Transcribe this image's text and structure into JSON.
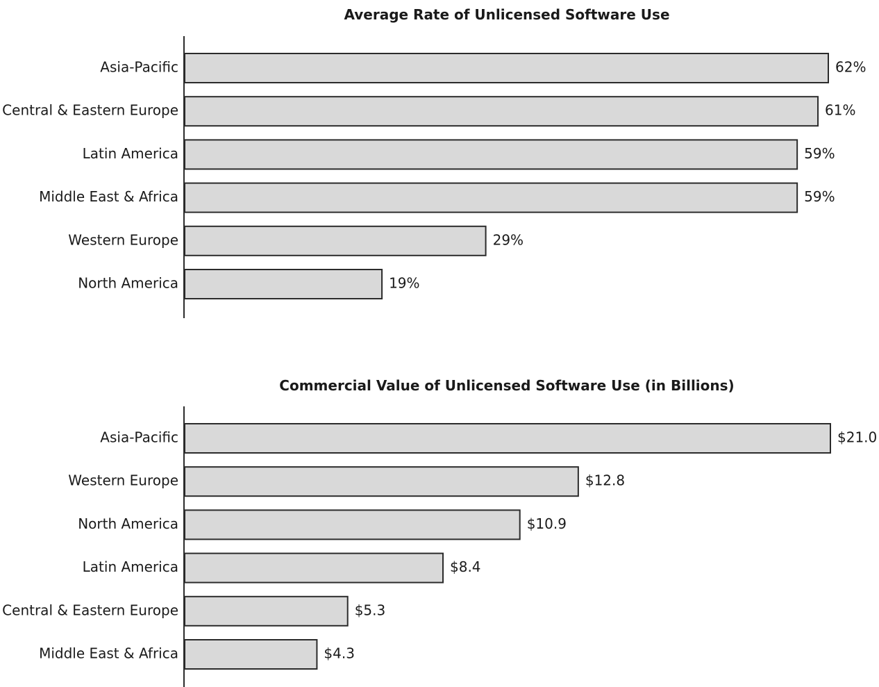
{
  "chart_data": [
    {
      "type": "bar",
      "orientation": "horizontal",
      "title": "Average Rate of Unlicensed Software Use",
      "categories": [
        "Asia-Pacific",
        "Central & Eastern Europe",
        "Latin America",
        "Middle East & Africa",
        "Western Europe",
        "North America"
      ],
      "values": [
        62,
        61,
        59,
        59,
        29,
        19
      ],
      "value_labels": [
        "62%",
        "61%",
        "59%",
        "59%",
        "29%",
        "19%"
      ],
      "xlim": [
        0,
        62
      ],
      "grid": false,
      "legend": "none",
      "bar_fill": "#d9d9d9",
      "bar_stroke": "#2b2b2b"
    },
    {
      "type": "bar",
      "orientation": "horizontal",
      "title": "Commercial Value of Unlicensed Software Use (in Billions)",
      "categories": [
        "Asia-Pacific",
        "Western Europe",
        "North America",
        "Latin America",
        "Central & Eastern Europe",
        "Middle East & Africa"
      ],
      "values": [
        21.0,
        12.8,
        10.9,
        8.4,
        5.3,
        4.3
      ],
      "value_labels": [
        "$21.0",
        "$12.8",
        "$10.9",
        "$8.4",
        "$5.3",
        "$4.3"
      ],
      "xlim": [
        0,
        21.0
      ],
      "grid": false,
      "legend": "none",
      "bar_fill": "#d9d9d9",
      "bar_stroke": "#2b2b2b"
    }
  ]
}
